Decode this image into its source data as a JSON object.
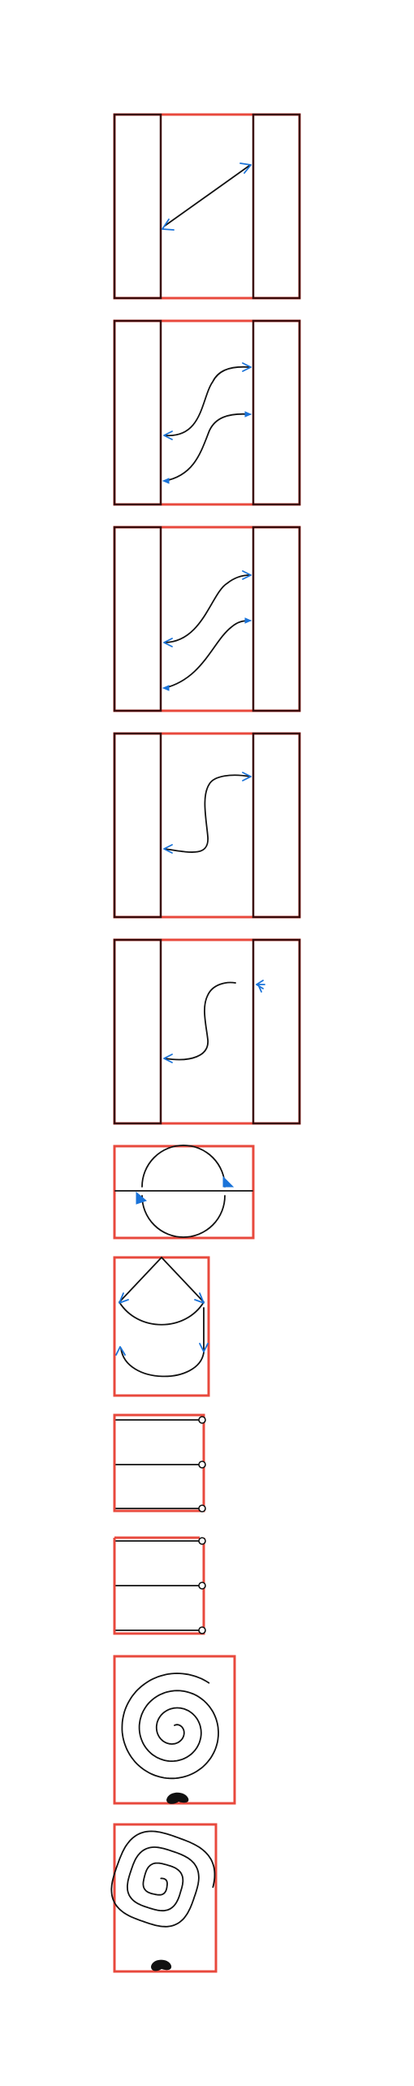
{
  "colors": {
    "frame_red": "#e8493d",
    "frame_dark": "#3a0a0a",
    "stroke": "#111111",
    "arrow": "#1a73d9",
    "background": "#ffffff"
  },
  "figures": [
    {
      "kind": "channel-straight-link",
      "arrows": "open-chevron"
    },
    {
      "kind": "channel-double-s-link",
      "arrows": "open-chevron"
    },
    {
      "kind": "channel-double-diagonal-link",
      "arrows": "open-chevron"
    },
    {
      "kind": "channel-single-s-link",
      "arrows": "open-chevron"
    },
    {
      "kind": "channel-single-s-link",
      "arrows": "feathered-end"
    },
    {
      "kind": "circle-with-axis",
      "arrows": "filled-triangle"
    },
    {
      "kind": "heart-loop",
      "arrows": "open-chevron"
    },
    {
      "kind": "three-bars-closed",
      "markers": "hollow-circle"
    },
    {
      "kind": "three-bars-open-top",
      "markers": "hollow-circle"
    },
    {
      "kind": "round-spiral",
      "markers": "blob"
    },
    {
      "kind": "square-spiral",
      "markers": "blob"
    }
  ]
}
